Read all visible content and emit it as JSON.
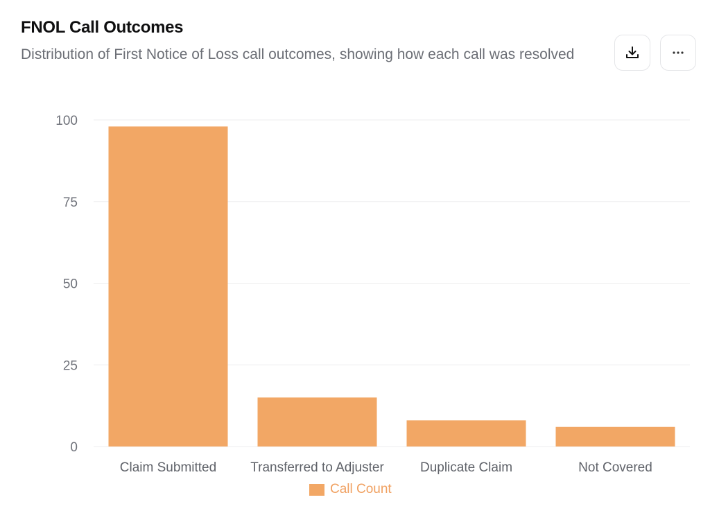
{
  "header": {
    "title": "FNOL Call Outcomes",
    "subtitle": "Distribution of First Notice of Loss call outcomes, showing how each call was resolved"
  },
  "toolbar": {
    "download_icon": "download-icon",
    "more_icon": "more-horizontal-icon"
  },
  "colors": {
    "bar": "#f2a765",
    "grid": "#eeeeef",
    "axis_text": "#6f727a",
    "legend_text": "#f0a060"
  },
  "chart_data": {
    "type": "bar",
    "categories": [
      "Claim Submitted",
      "Transferred to Adjuster",
      "Duplicate Claim",
      "Not Covered"
    ],
    "series": [
      {
        "name": "Call Count",
        "values": [
          98,
          15,
          8,
          6
        ]
      }
    ],
    "yticks": [
      0,
      25,
      50,
      75,
      100
    ],
    "ylim": [
      0,
      100
    ],
    "grid": true,
    "legend_position": "bottom-center"
  }
}
